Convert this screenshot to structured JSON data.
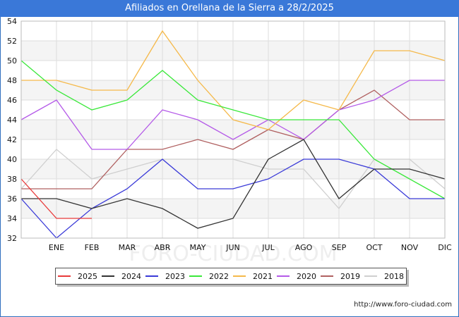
{
  "title": "Afiliados en Orellana de la Sierra a 28/2/2025",
  "source": "http://www.foro-ciudad.com",
  "watermark": "FORO-CIUDAD.COM",
  "chart_data": {
    "type": "line",
    "categories": [
      "",
      "ENE",
      "FEB",
      "MAR",
      "ABR",
      "MAY",
      "JUN",
      "JUL",
      "AGO",
      "SEP",
      "OCT",
      "NOV",
      "DIC"
    ],
    "ylim": [
      32,
      54
    ],
    "yticks": [
      32,
      34,
      36,
      38,
      40,
      42,
      44,
      46,
      48,
      50,
      52,
      54
    ],
    "grid": true,
    "legend_position": "bottom",
    "series": [
      {
        "name": "2025",
        "color": "#e83a3a",
        "values": [
          38,
          34,
          34,
          null,
          null,
          null,
          null,
          null,
          null,
          null,
          null,
          null,
          null
        ]
      },
      {
        "name": "2024",
        "color": "#333333",
        "values": [
          36,
          36,
          35,
          36,
          35,
          33,
          34,
          40,
          42,
          36,
          39,
          39,
          38
        ]
      },
      {
        "name": "2023",
        "color": "#3a3ad8",
        "values": [
          36,
          32,
          35,
          37,
          40,
          37,
          37,
          38,
          40,
          40,
          39,
          36,
          36
        ]
      },
      {
        "name": "2022",
        "color": "#3ae83a",
        "values": [
          50,
          47,
          45,
          46,
          49,
          46,
          45,
          44,
          44,
          44,
          40,
          38,
          36
        ]
      },
      {
        "name": "2021",
        "color": "#f5b94a",
        "values": [
          48,
          48,
          47,
          47,
          53,
          48,
          44,
          43,
          46,
          45,
          51,
          51,
          50
        ]
      },
      {
        "name": "2020",
        "color": "#b45ae8",
        "values": [
          44,
          46,
          41,
          41,
          45,
          44,
          42,
          44,
          42,
          45,
          46,
          48,
          48
        ]
      },
      {
        "name": "2019",
        "color": "#b06060",
        "values": [
          37,
          37,
          37,
          41,
          41,
          42,
          41,
          43,
          42,
          45,
          47,
          44,
          44
        ]
      },
      {
        "name": "2018",
        "color": "#cfcfcf",
        "values": [
          37,
          41,
          38,
          39,
          40,
          40,
          40,
          39,
          39,
          35,
          40,
          40,
          37
        ]
      }
    ]
  }
}
